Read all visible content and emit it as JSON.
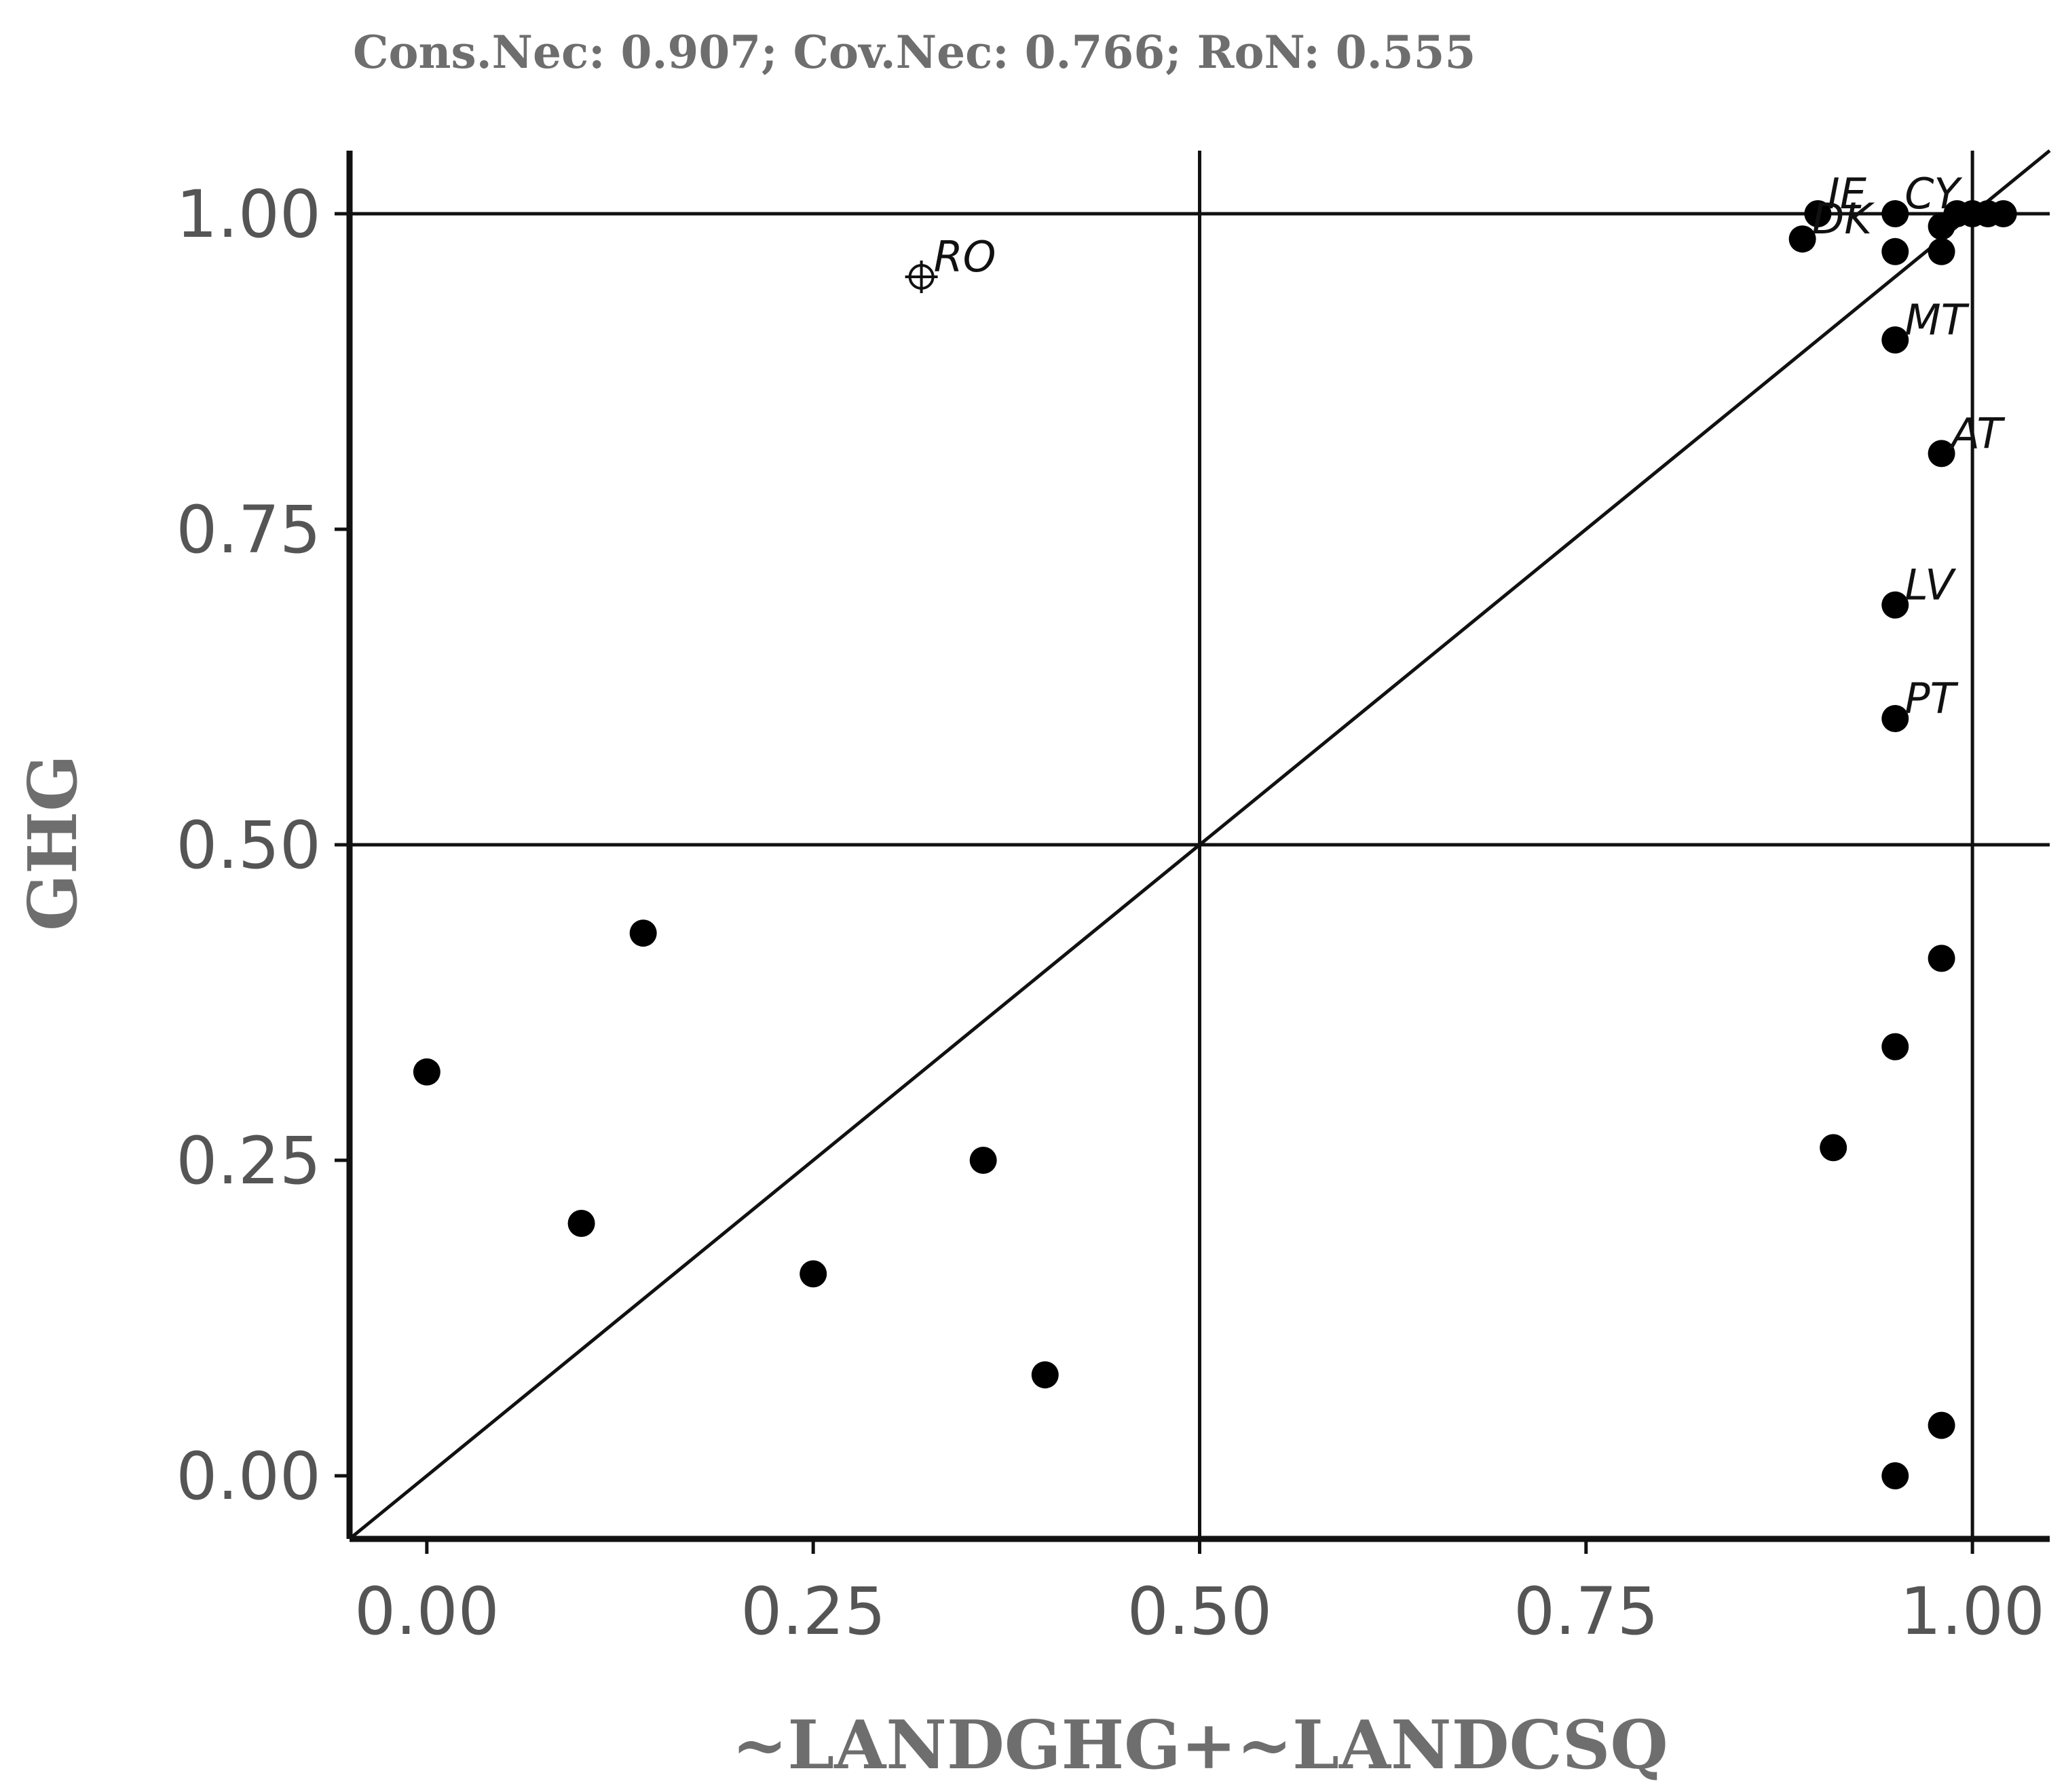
{
  "chart_data": {
    "type": "scatter",
    "title": "Cons.Nec: 0.907; Cov.Nec: 0.766; RoN: 0.555",
    "xlabel": "~LANDGHG+~LANDCSQ",
    "ylabel": "GHG",
    "xlim": [
      -0.05,
      1.05
    ],
    "ylim": [
      -0.05,
      1.05
    ],
    "x_ticks": [
      "0.00",
      "0.25",
      "0.50",
      "0.75",
      "1.00"
    ],
    "y_ticks": [
      "0.00",
      "0.25",
      "0.50",
      "0.75",
      "1.00"
    ],
    "reference_lines": {
      "vertical": [
        0.5,
        1.0
      ],
      "horizontal": [
        0.5,
        1.0
      ],
      "diagonal": "y = x"
    },
    "grid": false,
    "points": [
      {
        "x": 0.0,
        "y": 0.32,
        "label": ""
      },
      {
        "x": 0.1,
        "y": 0.2,
        "label": ""
      },
      {
        "x": 0.14,
        "y": 0.43,
        "label": ""
      },
      {
        "x": 0.25,
        "y": 0.16,
        "label": ""
      },
      {
        "x": 0.36,
        "y": 0.25,
        "label": ""
      },
      {
        "x": 0.4,
        "y": 0.08,
        "label": ""
      },
      {
        "x": 0.91,
        "y": 0.26,
        "label": ""
      },
      {
        "x": 0.95,
        "y": 0.34,
        "label": ""
      },
      {
        "x": 0.98,
        "y": 0.41,
        "label": ""
      },
      {
        "x": 0.98,
        "y": 0.04,
        "label": ""
      },
      {
        "x": 0.95,
        "y": 0.0,
        "label": ""
      },
      {
        "x": 0.95,
        "y": 0.6,
        "label": "PT"
      },
      {
        "x": 0.95,
        "y": 0.69,
        "label": "LV"
      },
      {
        "x": 0.98,
        "y": 0.81,
        "label": "AT"
      },
      {
        "x": 0.95,
        "y": 0.9,
        "label": "MT"
      },
      {
        "x": 0.9,
        "y": 1.0,
        "label": "IE"
      },
      {
        "x": 0.89,
        "y": 0.98,
        "label": "DK"
      },
      {
        "x": 0.95,
        "y": 1.0,
        "label": "CY"
      },
      {
        "x": 0.95,
        "y": 0.97,
        "label": ""
      },
      {
        "x": 0.98,
        "y": 0.97,
        "label": ""
      },
      {
        "x": 0.98,
        "y": 0.99,
        "label": ""
      },
      {
        "x": 0.99,
        "y": 1.0,
        "label": ""
      },
      {
        "x": 1.0,
        "y": 1.0,
        "label": ""
      },
      {
        "x": 1.01,
        "y": 1.0,
        "label": ""
      },
      {
        "x": 1.02,
        "y": 1.0,
        "label": ""
      }
    ],
    "deviant_points": [
      {
        "x": 0.32,
        "y": 0.95,
        "label": "RO"
      }
    ]
  }
}
